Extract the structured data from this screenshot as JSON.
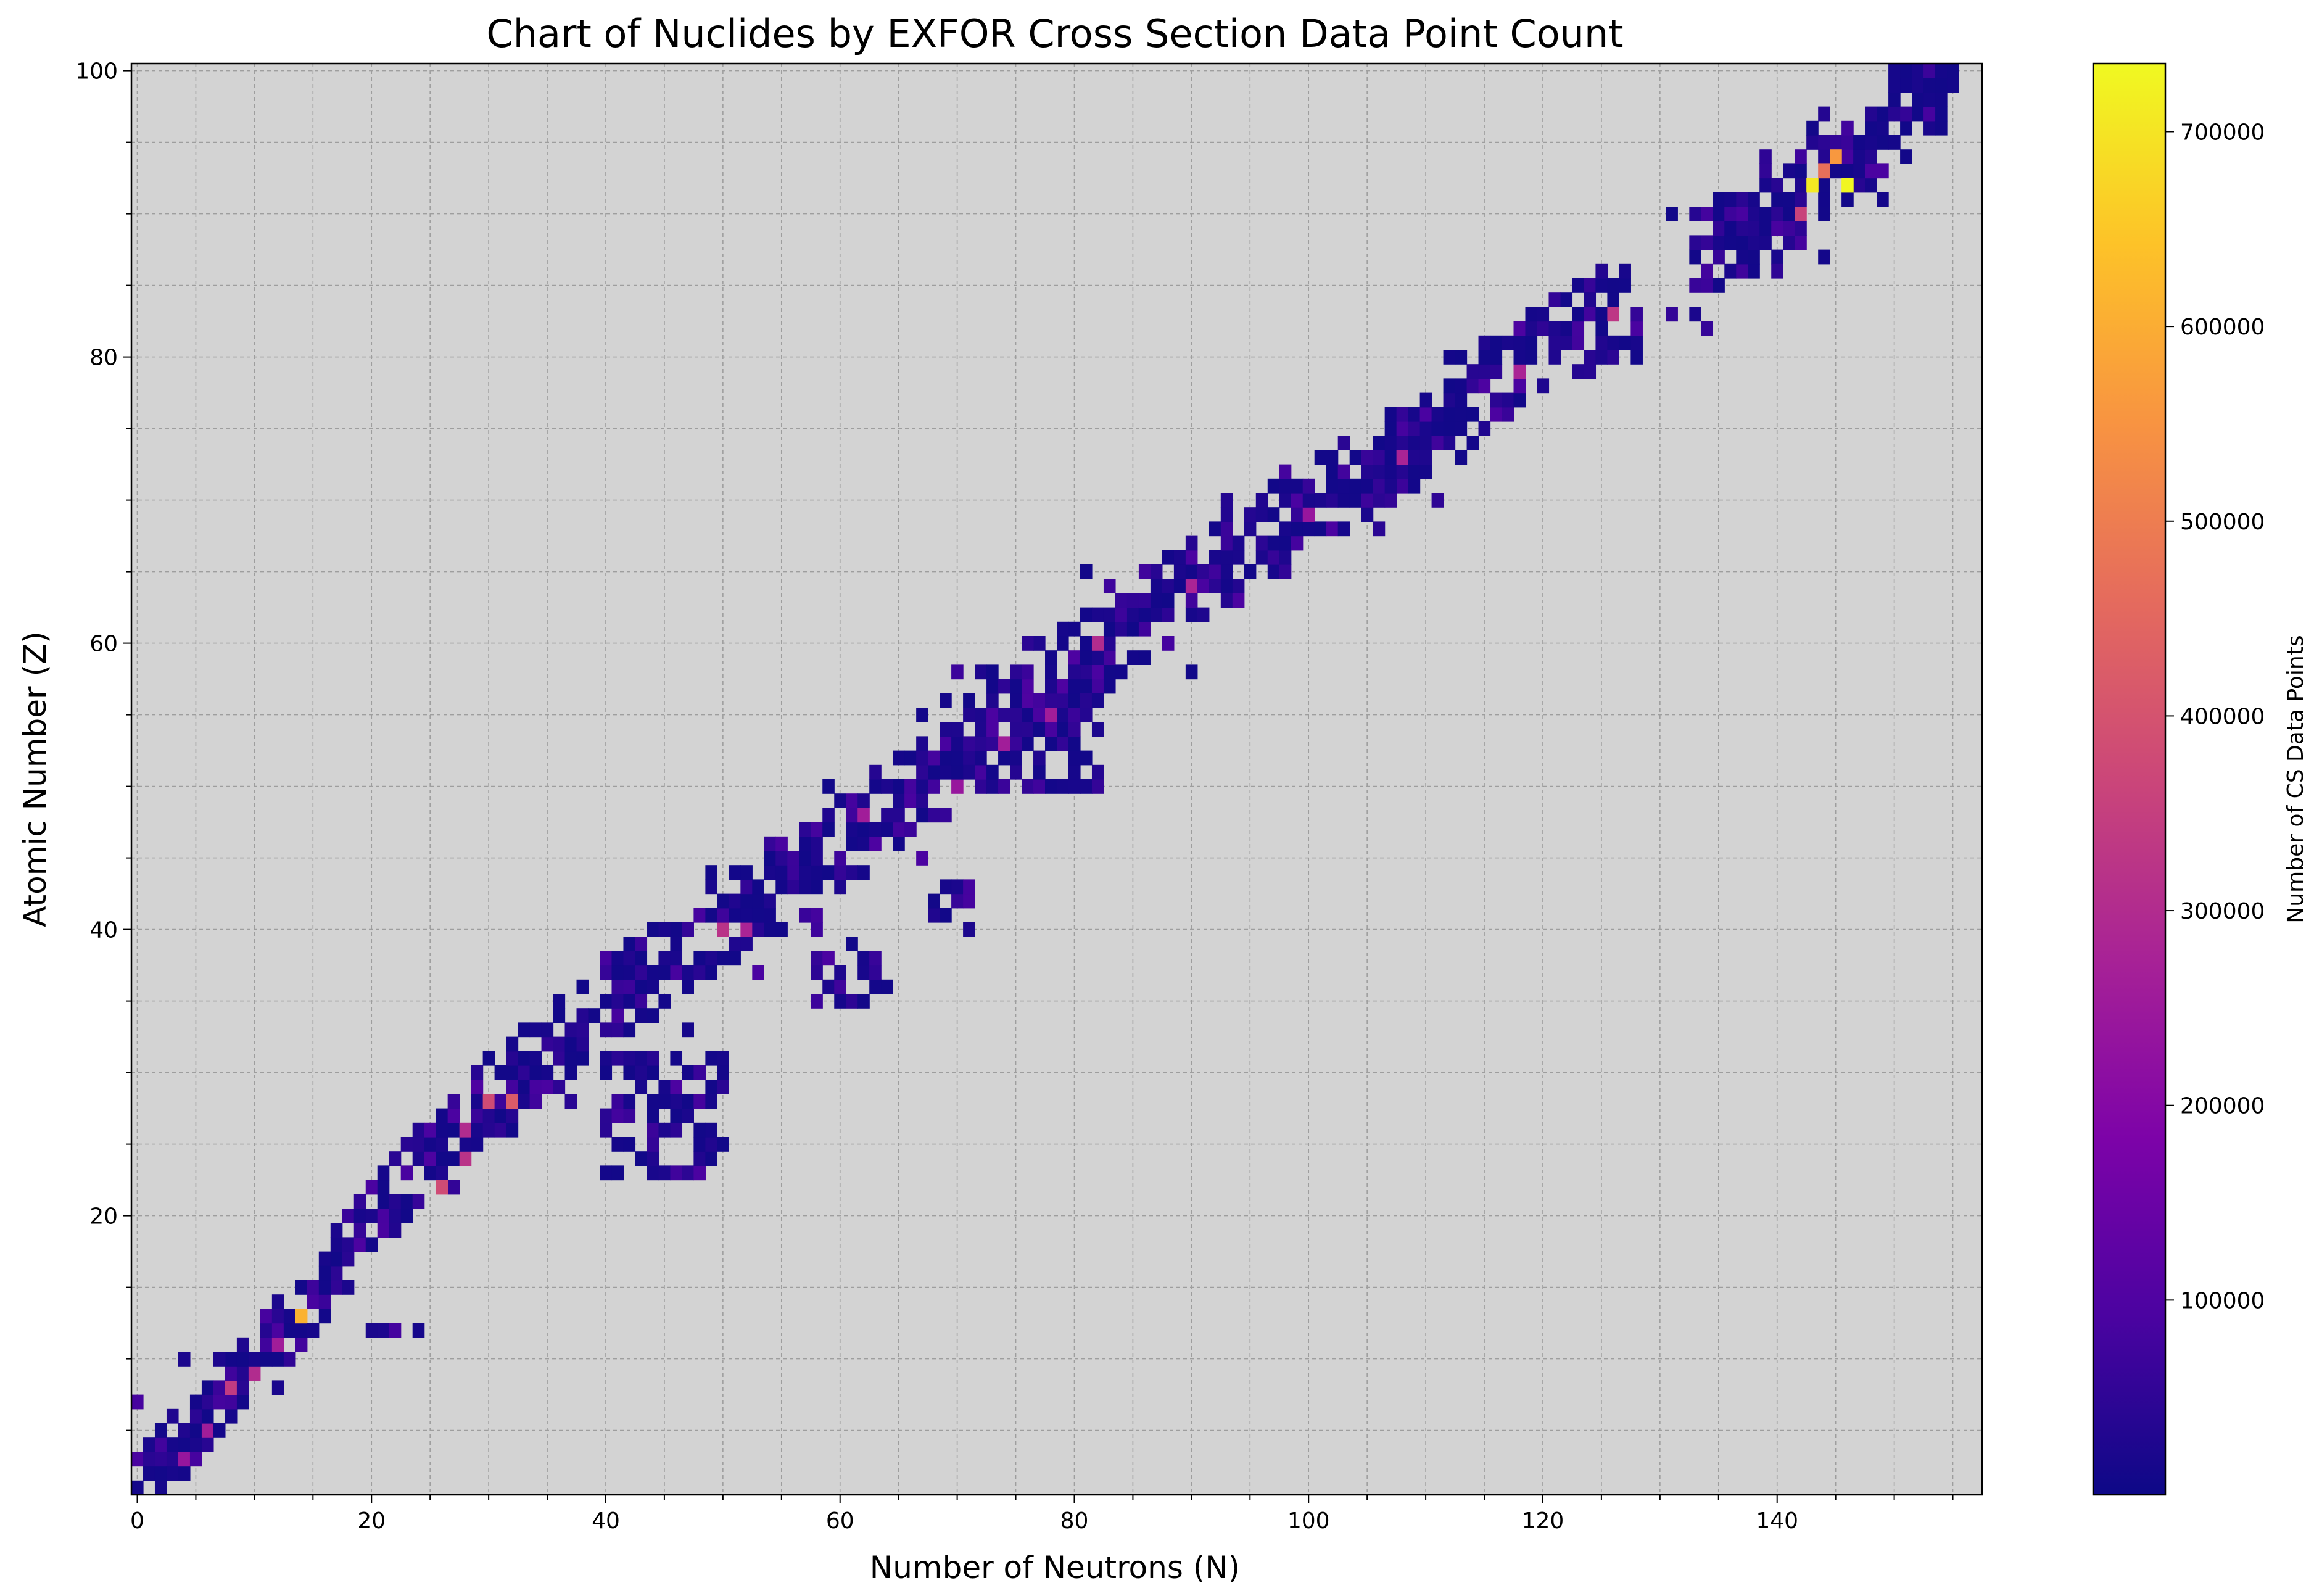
{
  "chart_data": {
    "type": "heatmap",
    "title": "Chart of Nuclides by EXFOR Cross Section Data Point Count",
    "xlabel": "Number of Neutrons (N)",
    "ylabel": "Atomic Number (Z)",
    "xlim": [
      -0.5,
      157.5
    ],
    "ylim": [
      0.5,
      100.5
    ],
    "x_ticks": [
      0,
      20,
      40,
      60,
      80,
      100,
      120,
      140
    ],
    "y_ticks": [
      20,
      40,
      60,
      80,
      100
    ],
    "grid": true,
    "background_color": "#d3d3d3",
    "colormap": "plasma",
    "colorbar": {
      "label": "Number of CS Data Points",
      "range": [
        0,
        735000
      ],
      "ticks": [
        100000,
        200000,
        300000,
        400000,
        500000,
        600000,
        700000
      ]
    },
    "band_ridge": [
      [
        0,
        1
      ],
      [
        2,
        3
      ],
      [
        5,
        5
      ],
      [
        8,
        8
      ],
      [
        10,
        10
      ],
      [
        14,
        13
      ],
      [
        20,
        20
      ],
      [
        24,
        24
      ],
      [
        28,
        27
      ],
      [
        34,
        30
      ],
      [
        40,
        35
      ],
      [
        50,
        40
      ],
      [
        56,
        44
      ],
      [
        64,
        48
      ],
      [
        70,
        52
      ],
      [
        76,
        56
      ],
      [
        82,
        60
      ],
      [
        90,
        64
      ],
      [
        98,
        68
      ],
      [
        106,
        72
      ],
      [
        112,
        76
      ],
      [
        118,
        80
      ],
      [
        124,
        82
      ],
      [
        140,
        90
      ],
      [
        146,
        94
      ],
      [
        152,
        98
      ],
      [
        155,
        100
      ]
    ],
    "secondary_clusters": [
      {
        "n_range": [
          20,
          26
        ],
        "z": 12
      },
      {
        "n_range": [
          40,
          50
        ],
        "z_range": [
          23,
          31
        ]
      },
      {
        "n_range": [
          58,
          64
        ],
        "z_range": [
          35,
          39
        ]
      },
      {
        "n_range": [
          68,
          71
        ],
        "z_range": [
          40,
          43
        ]
      },
      {
        "n_range": [
          72,
          82
        ],
        "z_range": [
          50,
          58
        ]
      }
    ],
    "hot_cells": [
      {
        "n": 146,
        "z": 92,
        "count": 730000
      },
      {
        "n": 143,
        "z": 92,
        "count": 710000
      },
      {
        "n": 14,
        "z": 13,
        "count": 610000
      },
      {
        "n": 145,
        "z": 94,
        "count": 560000
      },
      {
        "n": 144,
        "z": 93,
        "count": 470000
      },
      {
        "n": 32,
        "z": 28,
        "count": 420000
      },
      {
        "n": 30,
        "z": 28,
        "count": 380000
      },
      {
        "n": 26,
        "z": 22,
        "count": 380000
      },
      {
        "n": 142,
        "z": 90,
        "count": 360000
      },
      {
        "n": 8,
        "z": 8,
        "count": 340000
      },
      {
        "n": 126,
        "z": 83,
        "count": 330000
      },
      {
        "n": 50,
        "z": 40,
        "count": 320000
      },
      {
        "n": 28,
        "z": 24,
        "count": 320000
      },
      {
        "n": 10,
        "z": 9,
        "count": 300000
      },
      {
        "n": 82,
        "z": 60,
        "count": 300000
      },
      {
        "n": 28,
        "z": 26,
        "count": 300000
      },
      {
        "n": 52,
        "z": 40,
        "count": 280000
      },
      {
        "n": 90,
        "z": 64,
        "count": 280000
      },
      {
        "n": 108,
        "z": 73,
        "count": 280000
      },
      {
        "n": 118,
        "z": 79,
        "count": 280000
      },
      {
        "n": 12,
        "z": 11,
        "count": 260000
      },
      {
        "n": 6,
        "z": 5,
        "count": 260000
      },
      {
        "n": 62,
        "z": 48,
        "count": 260000
      },
      {
        "n": 74,
        "z": 53,
        "count": 260000
      },
      {
        "n": 78,
        "z": 55,
        "count": 260000
      },
      {
        "n": 70,
        "z": 50,
        "count": 240000
      },
      {
        "n": 100,
        "z": 69,
        "count": 240000
      },
      {
        "n": 4,
        "z": 3,
        "count": 240000
      }
    ]
  }
}
